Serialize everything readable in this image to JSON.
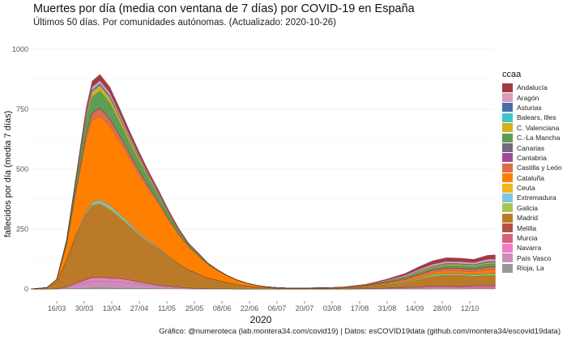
{
  "title": "Muertes por día (media con ventana de 7 días) por COVID-19 en España",
  "subtitle": "Últimos 50 días. Por comunidades autónomas. (Actualizado: 2020-10-26)",
  "caption": "Gráfico: @numeroteca (lab.montera34.com/covid19) | Datos: esCOVID19data (github.com/montera34/escovid19data)",
  "chart_data": {
    "type": "area",
    "stacked": true,
    "title": "Muertes por día (media con ventana de 7 días) por COVID-19 en España",
    "xlabel": "2020",
    "ylabel": "fallecidos por día (media 7 días)",
    "ylim": [
      0,
      1050
    ],
    "yticks": [
      0,
      250,
      500,
      750,
      1000
    ],
    "xticks": [
      "16/03",
      "30/03",
      "13/04",
      "27/04",
      "11/05",
      "25/05",
      "08/06",
      "22/06",
      "06/07",
      "20/07",
      "03/08",
      "17/08",
      "31/08",
      "14/09",
      "28/09",
      "12/10"
    ],
    "x_start": "2020-03-03",
    "x_end": "2020-10-26",
    "grid": true,
    "legend": {
      "title": "ccaa",
      "position": "right"
    },
    "x_days": [
      0,
      8,
      13,
      18,
      23,
      28,
      31,
      35,
      40,
      45,
      50,
      55,
      60,
      65,
      70,
      75,
      80,
      85,
      90,
      95,
      100,
      105,
      110,
      115,
      120,
      125,
      130,
      140,
      150,
      160,
      170,
      180,
      190,
      197,
      204,
      211,
      218,
      225,
      232,
      236
    ],
    "series": [
      {
        "name": "Rioja, La",
        "color": "#999999",
        "values": [
          0,
          0,
          0,
          1,
          2,
          3,
          4,
          4,
          4,
          3,
          3,
          2,
          2,
          1,
          1,
          1,
          0,
          0,
          0,
          0,
          0,
          0,
          0,
          0,
          0,
          0,
          0,
          0,
          0,
          0,
          0,
          0,
          0,
          0,
          0,
          0,
          0,
          1,
          1,
          1
        ]
      },
      {
        "name": "País Vasco",
        "color": "#c98fb8",
        "values": [
          0,
          0,
          1,
          5,
          15,
          25,
          30,
          30,
          28,
          26,
          22,
          18,
          14,
          10,
          7,
          5,
          3,
          2,
          1,
          1,
          1,
          0,
          0,
          0,
          0,
          0,
          0,
          0,
          0,
          0,
          0,
          1,
          2,
          3,
          4,
          4,
          4,
          4,
          4,
          4
        ]
      },
      {
        "name": "Navarra",
        "color": "#ee7fc5",
        "values": [
          0,
          0,
          0,
          2,
          6,
          10,
          12,
          13,
          12,
          14,
          11,
          8,
          6,
          4,
          3,
          2,
          1,
          1,
          0,
          0,
          0,
          0,
          0,
          0,
          0,
          0,
          0,
          0,
          0,
          0,
          1,
          2,
          3,
          3,
          4,
          4,
          3,
          4,
          4,
          4
        ]
      },
      {
        "name": "Murcia",
        "color": "#d9617e",
        "values": [
          0,
          0,
          0,
          1,
          2,
          3,
          3,
          3,
          3,
          2,
          2,
          2,
          1,
          1,
          1,
          0,
          0,
          0,
          0,
          0,
          0,
          0,
          0,
          0,
          0,
          0,
          0,
          0,
          0,
          0,
          0,
          1,
          2,
          3,
          4,
          4,
          4,
          5,
          6,
          6
        ]
      },
      {
        "name": "Melilla",
        "color": "#b35242",
        "values": [
          0,
          0,
          0,
          0,
          0,
          0,
          0,
          0,
          0,
          0,
          0,
          0,
          0,
          0,
          0,
          0,
          0,
          0,
          0,
          0,
          0,
          0,
          0,
          0,
          0,
          0,
          0,
          0,
          0,
          0,
          0,
          0,
          0,
          0,
          0,
          1,
          1,
          1,
          1,
          1
        ]
      },
      {
        "name": "Madrid",
        "color": "#bb7a27",
        "values": [
          0,
          5,
          30,
          110,
          200,
          270,
          300,
          305,
          285,
          255,
          225,
          195,
          170,
          150,
          120,
          95,
          75,
          60,
          45,
          35,
          25,
          18,
          12,
          8,
          5,
          3,
          2,
          2,
          2,
          3,
          5,
          10,
          18,
          30,
          40,
          45,
          45,
          38,
          40,
          40
        ]
      },
      {
        "name": "Galicia",
        "color": "#a6c551",
        "values": [
          0,
          0,
          0,
          1,
          3,
          5,
          6,
          7,
          7,
          6,
          5,
          4,
          3,
          2,
          1,
          1,
          0,
          0,
          0,
          0,
          0,
          0,
          0,
          0,
          0,
          0,
          0,
          0,
          0,
          1,
          1,
          2,
          3,
          4,
          5,
          5,
          5,
          5,
          6,
          6
        ]
      },
      {
        "name": "Extremadura",
        "color": "#7fc6e4",
        "values": [
          0,
          0,
          0,
          1,
          3,
          6,
          8,
          9,
          9,
          8,
          7,
          5,
          4,
          3,
          2,
          1,
          1,
          0,
          0,
          0,
          0,
          0,
          0,
          0,
          0,
          0,
          0,
          0,
          0,
          0,
          1,
          1,
          2,
          2,
          3,
          3,
          3,
          3,
          3,
          3
        ]
      },
      {
        "name": "Ceuta",
        "color": "#f3b51b",
        "values": [
          0,
          0,
          0,
          0,
          0,
          0,
          0,
          0,
          0,
          0,
          0,
          0,
          0,
          0,
          0,
          0,
          0,
          0,
          0,
          0,
          0,
          0,
          0,
          0,
          0,
          0,
          0,
          0,
          0,
          0,
          0,
          0,
          0,
          0,
          0,
          0,
          0,
          0,
          0,
          0
        ]
      },
      {
        "name": "Cataluña",
        "color": "#ff8000",
        "values": [
          0,
          1,
          8,
          60,
          180,
          300,
          340,
          350,
          330,
          300,
          270,
          240,
          210,
          180,
          150,
          120,
          95,
          75,
          55,
          40,
          28,
          18,
          12,
          7,
          4,
          3,
          2,
          2,
          3,
          4,
          5,
          6,
          7,
          8,
          9,
          10,
          10,
          10,
          14,
          15
        ]
      },
      {
        "name": "Castilla y León",
        "color": "#df6d4b",
        "values": [
          0,
          0,
          1,
          5,
          15,
          25,
          30,
          32,
          30,
          25,
          20,
          17,
          14,
          10,
          8,
          5,
          3,
          2,
          1,
          1,
          0,
          0,
          0,
          0,
          0,
          0,
          0,
          0,
          0,
          0,
          1,
          3,
          5,
          7,
          9,
          10,
          10,
          10,
          12,
          12
        ]
      },
      {
        "name": "Cantabria",
        "color": "#a04b9a",
        "values": [
          0,
          0,
          0,
          1,
          1,
          2,
          2,
          2,
          2,
          1,
          1,
          1,
          1,
          0,
          0,
          0,
          0,
          0,
          0,
          0,
          0,
          0,
          0,
          0,
          0,
          0,
          0,
          0,
          0,
          0,
          0,
          0,
          0,
          1,
          1,
          1,
          1,
          1,
          1,
          1
        ]
      },
      {
        "name": "Canarias",
        "color": "#74677f",
        "values": [
          0,
          0,
          0,
          1,
          1,
          2,
          2,
          2,
          2,
          1,
          1,
          1,
          1,
          0,
          0,
          0,
          0,
          0,
          0,
          0,
          0,
          0,
          0,
          0,
          0,
          0,
          0,
          0,
          0,
          0,
          0,
          1,
          1,
          1,
          1,
          1,
          1,
          1,
          1,
          1
        ]
      },
      {
        "name": "C.-La Mancha",
        "color": "#5d9e54",
        "values": [
          0,
          0,
          1,
          10,
          30,
          55,
          65,
          70,
          65,
          55,
          45,
          38,
          30,
          24,
          18,
          12,
          8,
          6,
          4,
          2,
          1,
          1,
          0,
          0,
          0,
          0,
          0,
          0,
          0,
          0,
          1,
          2,
          4,
          6,
          8,
          10,
          10,
          10,
          12,
          12
        ]
      },
      {
        "name": "C. Valenciana",
        "color": "#cfb21c",
        "values": [
          0,
          0,
          0,
          2,
          8,
          15,
          20,
          21,
          20,
          18,
          15,
          12,
          9,
          7,
          5,
          3,
          2,
          1,
          1,
          0,
          0,
          0,
          0,
          0,
          0,
          0,
          0,
          0,
          0,
          0,
          1,
          2,
          3,
          4,
          4,
          5,
          5,
          5,
          5,
          5
        ]
      },
      {
        "name": "Balears, Illes",
        "color": "#3fc5cb",
        "values": [
          0,
          0,
          0,
          1,
          2,
          3,
          4,
          4,
          4,
          3,
          2,
          2,
          1,
          1,
          1,
          0,
          0,
          0,
          0,
          0,
          0,
          0,
          0,
          0,
          0,
          0,
          0,
          0,
          0,
          0,
          0,
          1,
          1,
          2,
          2,
          2,
          2,
          2,
          2,
          2
        ]
      },
      {
        "name": "Asturias",
        "color": "#4a6fa5",
        "values": [
          0,
          0,
          0,
          1,
          2,
          4,
          5,
          5,
          5,
          4,
          3,
          3,
          2,
          2,
          1,
          1,
          0,
          0,
          0,
          0,
          0,
          0,
          0,
          0,
          0,
          0,
          0,
          0,
          0,
          0,
          0,
          0,
          1,
          1,
          1,
          2,
          2,
          2,
          3,
          3
        ]
      },
      {
        "name": "Aragón",
        "color": "#dc9dbc",
        "values": [
          0,
          0,
          0,
          1,
          5,
          10,
          12,
          13,
          13,
          11,
          9,
          7,
          6,
          4,
          3,
          2,
          1,
          1,
          0,
          0,
          0,
          0,
          0,
          0,
          0,
          0,
          0,
          0,
          0,
          1,
          2,
          3,
          5,
          6,
          8,
          8,
          8,
          8,
          9,
          9
        ]
      },
      {
        "name": "Andalucía",
        "color": "#a23b45",
        "values": [
          0,
          0,
          0,
          3,
          10,
          20,
          25,
          26,
          25,
          23,
          20,
          17,
          14,
          11,
          8,
          6,
          4,
          3,
          2,
          1,
          1,
          0,
          0,
          0,
          0,
          0,
          0,
          0,
          0,
          1,
          2,
          5,
          8,
          12,
          15,
          16,
          15,
          14,
          17,
          18
        ]
      }
    ]
  },
  "legend_order": [
    "Andalucía",
    "Aragón",
    "Asturias",
    "Balears, Illes",
    "C. Valenciana",
    "C.-La Mancha",
    "Canarias",
    "Cantabria",
    "Castilla y León",
    "Cataluña",
    "Ceuta",
    "Extremadura",
    "Galicia",
    "Madrid",
    "Melilla",
    "Murcia",
    "Navarra",
    "País Vasco",
    "Rioja, La"
  ]
}
